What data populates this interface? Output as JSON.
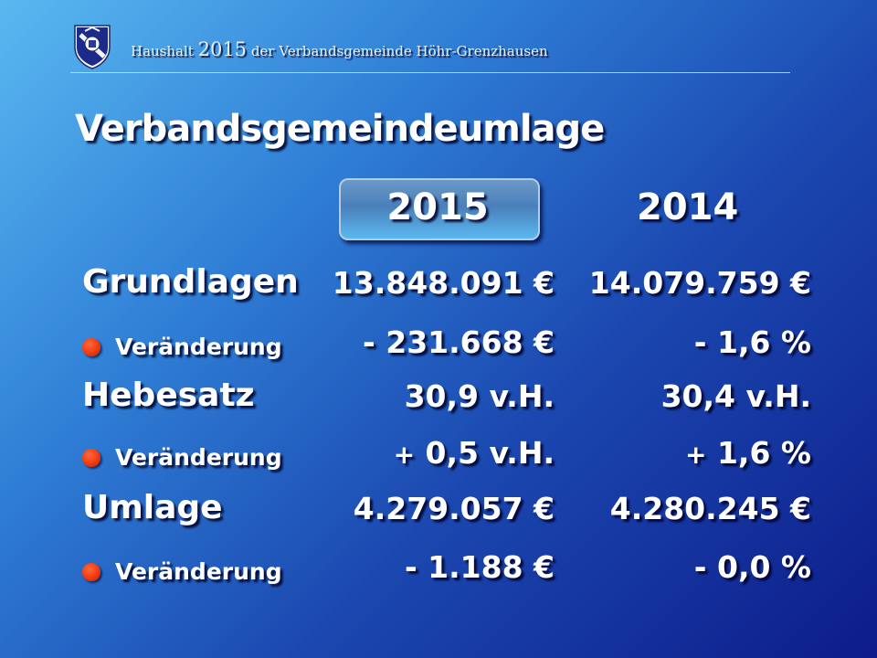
{
  "header": {
    "prefix": "Haushalt ",
    "year": "2015",
    "suffix": " der Verbandsgemeinde Höhr-Grenzhausen",
    "crest_icon": "coat-of-arms-icon"
  },
  "title": "Verbandsgemeindeumlage",
  "columns": {
    "current": "2015",
    "previous": "2014"
  },
  "rows": [
    {
      "label": "Grundlagen",
      "col1": "13.848.091 €",
      "col2": "14.079.759 €"
    },
    {
      "label": "Veränderung",
      "col1": "- 231.668 €",
      "col2": "- 1,6 %"
    },
    {
      "label": "Hebesatz",
      "col1": "30,9 v.H.",
      "col2": "30,4 v.H."
    },
    {
      "label": "Veränderung",
      "col1_sign": "+",
      "col1": " 0,5 v.H.",
      "col2_sign": "+",
      "col2": " 1,6 %"
    },
    {
      "label": "Umlage",
      "col1": "4.279.057 €",
      "col2": "4.280.245 €"
    },
    {
      "label": "Veränderung",
      "col1": "- 1.188 €",
      "col2": "- 0,0 %"
    }
  ],
  "colors": {
    "bullet": "#f03a10",
    "text": "#ffffff"
  }
}
